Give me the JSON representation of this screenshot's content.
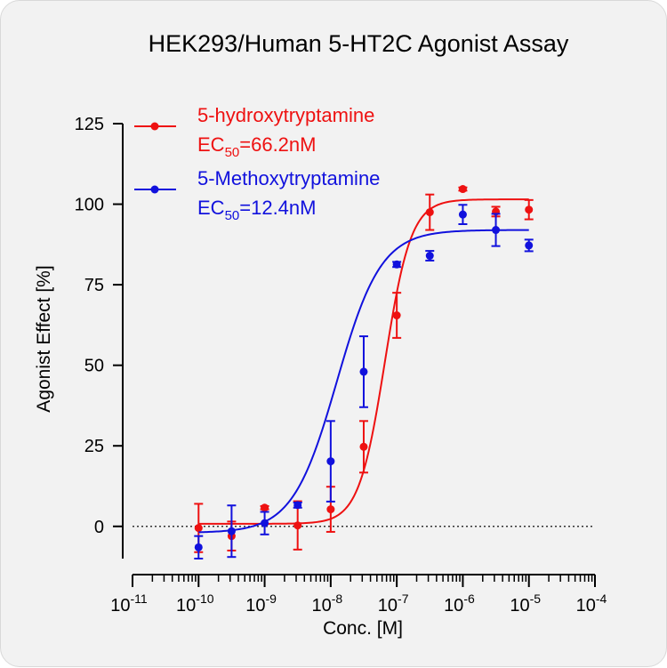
{
  "chart_data": {
    "type": "scatter",
    "title": "HEK293/Human 5-HT2C Agonist Assay",
    "xlabel": "Conc. [M]",
    "ylabel": "Agonist Effect [%]",
    "x_scale": "log",
    "xlim": [
      1e-11,
      0.0001
    ],
    "ylim": [
      -10,
      125
    ],
    "x_ticks": [
      {
        "base": "10",
        "exp": "-11"
      },
      {
        "base": "10",
        "exp": "-10"
      },
      {
        "base": "10",
        "exp": "-9"
      },
      {
        "base": "10",
        "exp": "-8"
      },
      {
        "base": "10",
        "exp": "-7"
      },
      {
        "base": "10",
        "exp": "-6"
      },
      {
        "base": "10",
        "exp": "-5"
      },
      {
        "base": "10",
        "exp": "-4"
      }
    ],
    "y_ticks": [
      "0",
      "25",
      "50",
      "75",
      "100",
      "125"
    ],
    "reference_line": {
      "y": 0,
      "style": "dotted"
    },
    "legend_position": "top-left",
    "series": [
      {
        "name": "5-hydroxytryptamine",
        "ec50_prefix": "EC",
        "ec50_sub": "50",
        "ec50_value": "=66.2nM",
        "color": "#ee1111",
        "fit": {
          "bottom": 0.8,
          "top": 101.5,
          "ec50": 6.62e-08,
          "hill": 2.2
        },
        "points": [
          {
            "x": 1e-10,
            "y": -0.5,
            "err": 7.5
          },
          {
            "x": 3.16e-10,
            "y": -3.0,
            "err": 4.5
          },
          {
            "x": 1e-09,
            "y": 5.8,
            "err": 0.5
          },
          {
            "x": 3.16e-09,
            "y": 0.3,
            "err": 7.5
          },
          {
            "x": 1e-08,
            "y": 5.3,
            "err": 7.0
          },
          {
            "x": 3.16e-08,
            "y": 24.7,
            "err": 8.0
          },
          {
            "x": 1e-07,
            "y": 65.5,
            "err": 7.0
          },
          {
            "x": 3.16e-07,
            "y": 97.5,
            "err": 5.5
          },
          {
            "x": 1e-06,
            "y": 104.7,
            "err": 0.5
          },
          {
            "x": 3.16e-06,
            "y": 97.7,
            "err": 1.5
          },
          {
            "x": 1e-05,
            "y": 98.3,
            "err": 3.0
          }
        ]
      },
      {
        "name": "5-Methoxytryptamine",
        "ec50_prefix": "EC",
        "ec50_sub": "50",
        "ec50_value": "=12.4nM",
        "color": "#1111dd",
        "fit": {
          "bottom": -2.0,
          "top": 92.0,
          "ec50": 1.24e-08,
          "hill": 1.3
        },
        "points": [
          {
            "x": 1e-10,
            "y": -6.5,
            "err": 3.5
          },
          {
            "x": 3.16e-10,
            "y": -1.5,
            "err": 8.0
          },
          {
            "x": 1e-09,
            "y": 1.0,
            "err": 3.5
          },
          {
            "x": 3.16e-09,
            "y": 6.6,
            "err": 0.8
          },
          {
            "x": 1e-08,
            "y": 20.2,
            "err": 12.5
          },
          {
            "x": 3.16e-08,
            "y": 48.0,
            "err": 11.0
          },
          {
            "x": 1e-07,
            "y": 81.3,
            "err": 0.8
          },
          {
            "x": 3.16e-07,
            "y": 84.0,
            "err": 1.5
          },
          {
            "x": 1e-06,
            "y": 96.8,
            "err": 3.0
          },
          {
            "x": 3.16e-06,
            "y": 92.0,
            "err": 5.0
          },
          {
            "x": 1e-05,
            "y": 87.2,
            "err": 1.8
          }
        ]
      }
    ]
  }
}
